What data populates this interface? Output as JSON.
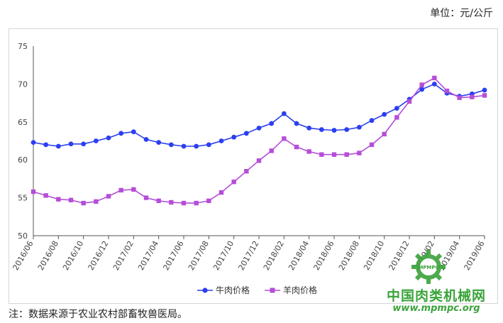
{
  "header": {
    "unit": "单位：元/公斤"
  },
  "footer": {
    "note": "注：数据来源于农业农村部畜牧兽医局。"
  },
  "watermark": {
    "title": "中国肉类机械网",
    "url": "www.mpmpc.org",
    "logo_text": "MPMPC"
  },
  "colors": {
    "beef": "#2b3ff0",
    "mutton": "#b54ed8",
    "axis": "#555555",
    "watermark": "#3aa33a"
  },
  "chart_data": {
    "type": "line",
    "title": "",
    "xlabel": "",
    "ylabel": "",
    "ylim": [
      50,
      75
    ],
    "yticks": [
      50,
      55,
      60,
      65,
      70,
      75
    ],
    "grid": false,
    "legend_position": "bottom",
    "x": [
      "2016/06",
      "2016/07",
      "2016/08",
      "2016/09",
      "2016/10",
      "2016/11",
      "2016/12",
      "2017/01",
      "2017/02",
      "2017/03",
      "2017/04",
      "2017/05",
      "2017/06",
      "2017/07",
      "2017/08",
      "2017/09",
      "2017/10",
      "2017/11",
      "2017/12",
      "2018/01",
      "2018/02",
      "2018/03",
      "2018/04",
      "2018/05",
      "2018/06",
      "2018/07",
      "2018/08",
      "2018/09",
      "2018/10",
      "2018/11",
      "2018/12",
      "2019/01",
      "2019/02",
      "2019/03",
      "2019/04",
      "2019/05",
      "2019/06"
    ],
    "xtick_labels": [
      "2016/06",
      "2016/08",
      "2016/10",
      "2016/12",
      "2017/02",
      "2017/04",
      "2017/06",
      "2017/08",
      "2017/10",
      "2017/12",
      "2018/02",
      "2018/04",
      "2018/06",
      "2018/08",
      "2018/10",
      "2018/12",
      "2019/02",
      "2019/04",
      "2019/06"
    ],
    "series": [
      {
        "name": "牛肉价格",
        "marker": "circle",
        "values": [
          62.3,
          62.0,
          61.8,
          62.1,
          62.1,
          62.5,
          62.9,
          63.5,
          63.7,
          62.7,
          62.3,
          62.0,
          61.8,
          61.8,
          62.0,
          62.5,
          63.0,
          63.5,
          64.2,
          64.8,
          66.1,
          64.8,
          64.2,
          64.0,
          63.9,
          64.0,
          64.3,
          65.2,
          66.0,
          66.8,
          68.0,
          69.3,
          70.0,
          68.8,
          68.4,
          68.7,
          69.2
        ]
      },
      {
        "name": "羊肉价格",
        "marker": "square",
        "values": [
          55.8,
          55.3,
          54.8,
          54.7,
          54.3,
          54.5,
          55.2,
          56.0,
          56.1,
          55.0,
          54.6,
          54.4,
          54.3,
          54.3,
          54.6,
          55.7,
          57.1,
          58.5,
          59.9,
          61.2,
          62.8,
          61.7,
          61.1,
          60.7,
          60.7,
          60.7,
          60.9,
          62.0,
          63.4,
          65.6,
          67.7,
          69.9,
          70.8,
          69.1,
          68.2,
          68.3,
          68.5
        ]
      }
    ]
  }
}
